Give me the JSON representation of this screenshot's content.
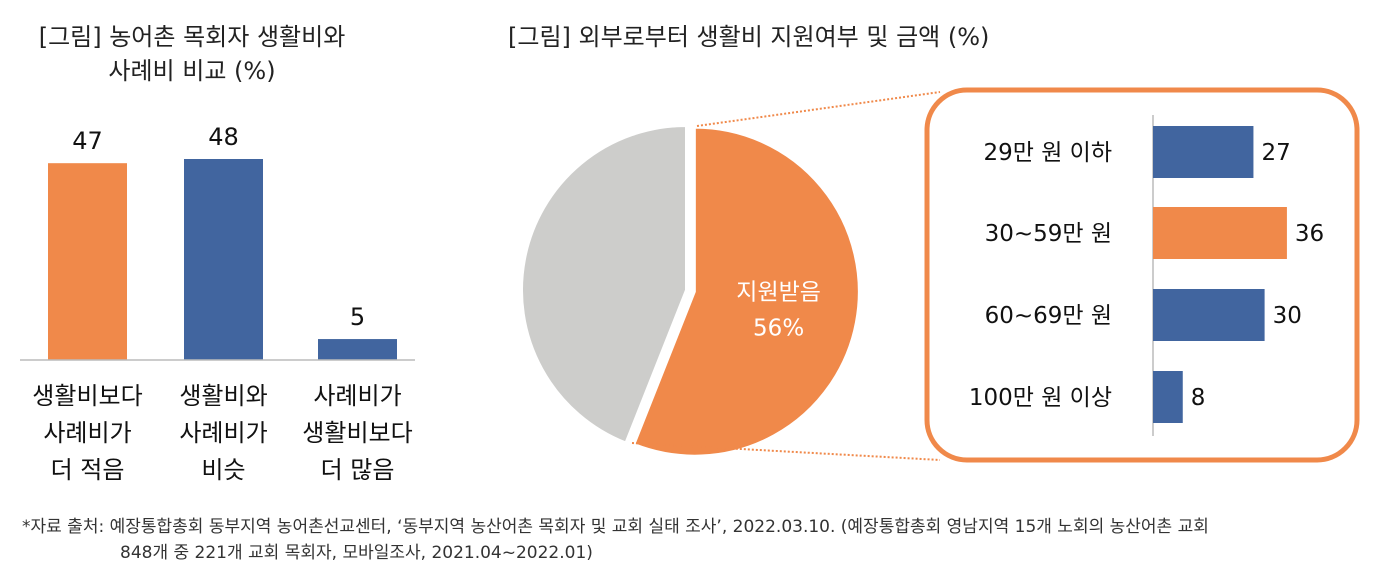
{
  "colors": {
    "orange": "#F0894A",
    "blue": "#41659F",
    "gray": "#CDCDCB"
  },
  "chart_data": [
    {
      "type": "bar",
      "title_lines": [
        "[그림] 농어촌 목회자 생활비와",
        "사례비 비교 (%)"
      ],
      "categories": [
        [
          "생활비보다",
          "사례비가",
          "더 적음"
        ],
        [
          "생활비와",
          "사례비가",
          "비슷"
        ],
        [
          "사례비가",
          "생활비보다",
          "더 많음"
        ]
      ],
      "values": [
        47,
        48,
        5
      ],
      "value_labels": [
        "47",
        "48",
        "5"
      ],
      "bar_colors": [
        "orange",
        "blue",
        "blue"
      ],
      "ylim": [
        0,
        50
      ]
    },
    {
      "type": "pie",
      "title": "[그림] 외부로부터 생활비 지원여부 및 금액 (%)",
      "slices": [
        {
          "label": "지원받음",
          "value": 56,
          "value_label": "56%",
          "color": "orange"
        },
        {
          "label": "",
          "value": 44,
          "color": "gray"
        }
      ]
    },
    {
      "type": "bar",
      "orientation": "horizontal",
      "categories": [
        "29만 원 이하",
        "30~59만 원",
        "60~69만 원",
        "100만 원 이상"
      ],
      "values": [
        27,
        36,
        30,
        8
      ],
      "value_labels": [
        "27",
        "36",
        "30",
        "8"
      ],
      "bar_colors": [
        "blue",
        "orange",
        "blue",
        "blue"
      ]
    }
  ],
  "footnote": {
    "line1": "*자료 출처: 예장통합총회 동부지역 농어촌선교센터, ‘동부지역 농산어촌 목회자 및 교회 실태 조사’, 2022.03.10. (예장통합총회 영남지역 15개 노회의 농산어촌 교회",
    "line2": "848개 중 221개 교회 목회자, 모바일조사, 2021.04~2022.01)"
  }
}
